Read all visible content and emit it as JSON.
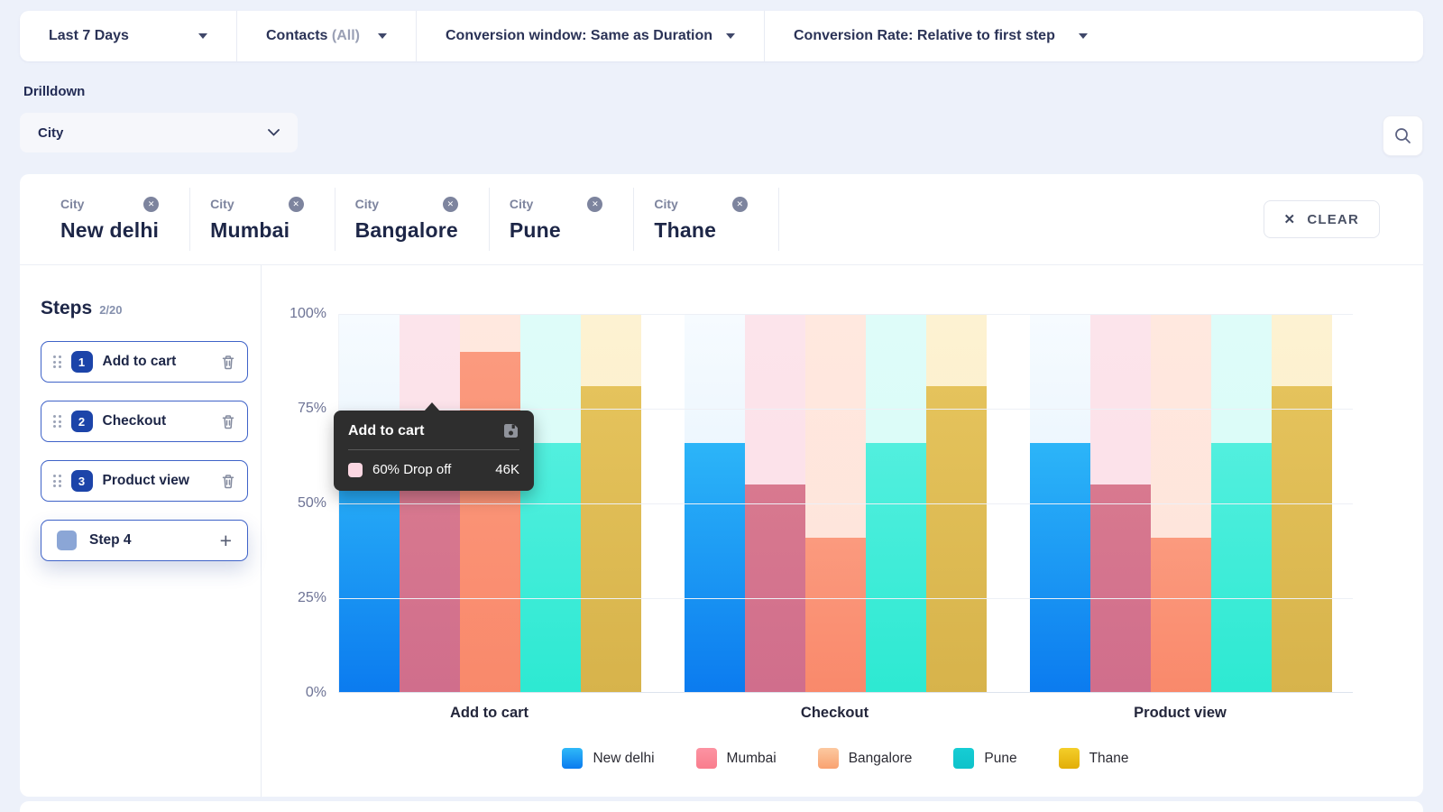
{
  "page": {
    "background": "#edf1fa",
    "accent": "#1c44a9"
  },
  "toolbar": {
    "items": [
      {
        "label": "Last 7 Days"
      },
      {
        "label": "Contacts",
        "suffix": "(All)"
      },
      {
        "label": "Conversion window: Same as Duration"
      },
      {
        "label": "Conversion Rate: Relative to first step"
      }
    ]
  },
  "drilldown": {
    "label": "Drilldown",
    "selected": "City"
  },
  "filters": {
    "chips": [
      {
        "type": "City",
        "value": "New delhi"
      },
      {
        "type": "City",
        "value": "Mumbai"
      },
      {
        "type": "City",
        "value": "Bangalore"
      },
      {
        "type": "City",
        "value": "Pune"
      },
      {
        "type": "City",
        "value": "Thane"
      }
    ],
    "clear_label": "CLEAR"
  },
  "steps": {
    "title": "Steps",
    "count": "2/20",
    "items": [
      {
        "num": "1",
        "label": "Add to cart"
      },
      {
        "num": "2",
        "label": "Checkout"
      },
      {
        "num": "3",
        "label": "Product view"
      }
    ],
    "placeholder": {
      "label": "Step 4"
    }
  },
  "tooltip": {
    "title": "Add to cart",
    "row_label": "60% Drop off",
    "row_value": "46K",
    "swatch_color": "#fbd7e2",
    "background": "#2e2e2e"
  },
  "chart_data": {
    "type": "bar",
    "categories": [
      "Add to cart",
      "Checkout",
      "Product view"
    ],
    "series": [
      {
        "name": "New delhi",
        "values": [
          66,
          66,
          66
        ],
        "color_top": "#2cb5f8",
        "color_bottom": "#0b7bef",
        "light_top": "#f6fbff",
        "light_bottom": "#ddeefb",
        "legend_top": "#2fb9f8",
        "legend_bottom": "#0b7bef"
      },
      {
        "name": "Mumbai",
        "values": [
          55,
          55,
          55
        ],
        "color_top": "#d8798f",
        "color_bottom": "#d06e8c",
        "light_top": "#fce4eb",
        "light_bottom": "#fcdfe8",
        "legend_top": "#fc93a2",
        "legend_bottom": "#f97d8d"
      },
      {
        "name": "Bangalore",
        "values": [
          90,
          41,
          41
        ],
        "color_top": "#fb9a7e",
        "color_bottom": "#f9896b",
        "light_top": "#ffe8df",
        "light_bottom": "#fee3d9",
        "legend_top": "#fcc9a0",
        "legend_bottom": "#f9a271"
      },
      {
        "name": "Pune",
        "values": [
          66,
          66,
          66
        ],
        "color_top": "#52efde",
        "color_bottom": "#2de9d2",
        "light_top": "#defcf9",
        "light_bottom": "#d7fbf7",
        "legend_top": "#16cdd4",
        "legend_bottom": "#0ec2ca"
      },
      {
        "name": "Thane",
        "values": [
          81,
          81,
          81
        ],
        "color_top": "#e5c35c",
        "color_bottom": "#d7b34b",
        "light_top": "#fdf2d2",
        "light_bottom": "#fbecc4",
        "legend_top": "#f4ce2a",
        "legend_bottom": "#e2ae08"
      }
    ],
    "y_ticks": [
      "100%",
      "75%",
      "50%",
      "25%",
      "0%"
    ],
    "ylim": [
      0,
      100
    ],
    "legend_position": "bottom",
    "grid": true,
    "overlay_note": "light tinted area above each bar is the drop-off remainder up to 100%"
  }
}
